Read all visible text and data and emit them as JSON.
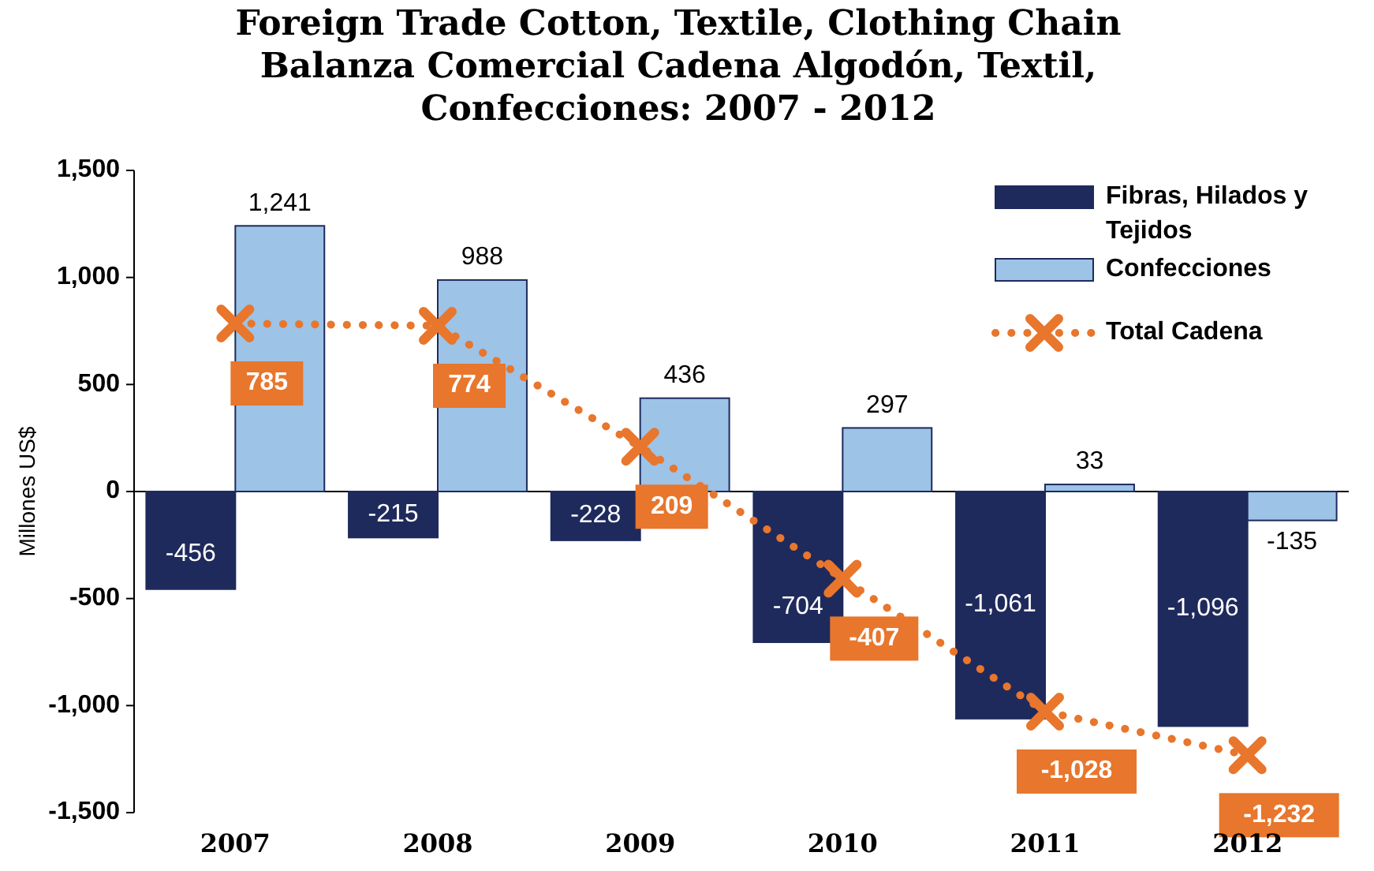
{
  "chart_data": {
    "type": "bar",
    "title": "Foreign Trade Cotton, Textile, Clothing Chain\nBalanza Comercial Cadena Algodón, Textil,\nConfecciones: 2007 - 2012",
    "ylabel": "Millones US$",
    "categories": [
      "2007",
      "2008",
      "2009",
      "2010",
      "2011",
      "2012"
    ],
    "series": [
      {
        "name": "Fibras, Hilados y Tejidos",
        "color": "#1f2a5c",
        "values": [
          -456,
          -215,
          -228,
          -704,
          -1061,
          -1096
        ],
        "value_labels": [
          "-456",
          "-215",
          "-228",
          "-704",
          "-1,061",
          "-1,096"
        ]
      },
      {
        "name": "Confecciones",
        "color": "#9dc3e6",
        "values": [
          1241,
          988,
          436,
          297,
          33,
          -135
        ],
        "value_labels": [
          "1,241",
          "988",
          "436",
          "297",
          "33",
          "-135"
        ]
      },
      {
        "name": "Total Cadena",
        "type": "line",
        "color": "#e8762c",
        "values": [
          785,
          774,
          209,
          -407,
          -1028,
          -1232
        ],
        "value_labels": [
          "785",
          "774",
          "209",
          "-407",
          "-1,028",
          "-1,232"
        ]
      }
    ],
    "ylim": [
      -1500,
      1500
    ],
    "yticks": [
      {
        "value": -1500,
        "label": "-1,500"
      },
      {
        "value": -1000,
        "label": "-1,000"
      },
      {
        "value": -500,
        "label": "-500"
      },
      0,
      {
        "value": 500,
        "label": "500"
      },
      {
        "value": 1000,
        "label": "1,000"
      },
      {
        "value": 1500,
        "label": "1,500"
      }
    ],
    "legend": "top right",
    "marker": "cross",
    "line_style": "dotted"
  }
}
